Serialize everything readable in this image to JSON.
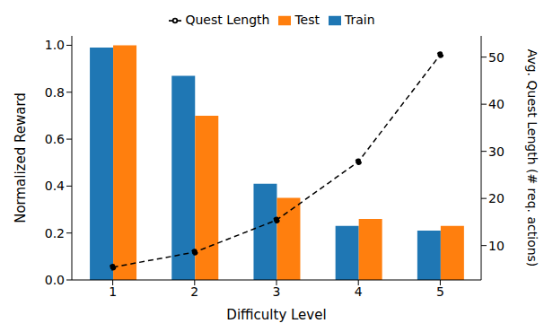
{
  "chart_data": {
    "type": "bar",
    "categories": [
      "1",
      "2",
      "3",
      "4",
      "5"
    ],
    "x_label": "Difficulty Level",
    "y_label": "Normalized Reward",
    "y2_label": "Avg. Quest Length (# req. actions)",
    "series": [
      {
        "name": "Train",
        "color": "#1f77b4",
        "values": [
          0.99,
          0.87,
          0.41,
          0.23,
          0.21
        ]
      },
      {
        "name": "Test",
        "color": "#ff7f0e",
        "values": [
          1.0,
          0.7,
          0.35,
          0.26,
          0.23
        ]
      },
      {
        "name": "Quest Length",
        "type": "line",
        "axis": "y2",
        "color": "#000000",
        "marker": "circle",
        "line_style": "dashed",
        "values": [
          5.4,
          8.6,
          15.4,
          27.8,
          50.5
        ]
      }
    ],
    "ylim": [
      0,
      1.04
    ],
    "yticks": [
      {
        "value": 0,
        "label": "0.0"
      },
      0.2,
      0.4,
      0.6,
      0.8,
      {
        "value": 1,
        "label": "1.0"
      }
    ],
    "y2lim": [
      2.7,
      54.5
    ],
    "y2ticks": [
      10,
      20,
      30,
      40,
      50
    ],
    "grid": false,
    "legend": "top"
  }
}
